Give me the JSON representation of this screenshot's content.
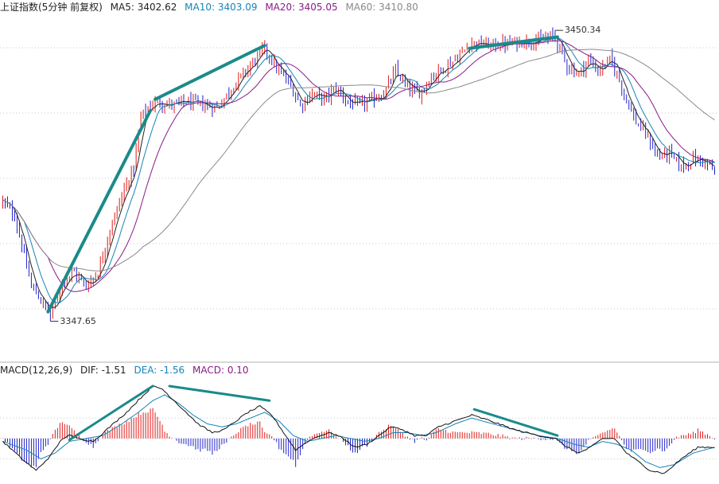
{
  "colors": {
    "background": "#ffffff",
    "grid": "#c8c8c8",
    "up": "#e01818",
    "down": "#2222cc",
    "ma5": "#222222",
    "ma10": "#1585b8",
    "ma20": "#8a1a8a",
    "ma60": "#8a8a8a",
    "trend_line": "#1a8a8a",
    "label_text": "#333333"
  },
  "price_header": {
    "title": "上证指数(5分钟 前复权)",
    "ma5": "MA5: 3402.62",
    "ma10": "MA10: 3403.09",
    "ma20": "MA20: 3405.05",
    "ma60": "MA60: 3410.80"
  },
  "macd_header": {
    "name": "MACD(12,26,9)",
    "dif": "DIF: -1.51",
    "dea": "DEA: -1.56",
    "macd": "MACD: 0.10"
  },
  "annotations": {
    "high": "3450.34",
    "low": "3347.65"
  },
  "chart_data": [
    {
      "type": "candlestick",
      "x_count": 300,
      "ylim": [
        3336,
        3456
      ],
      "high_marker": {
        "index": 232,
        "value": 3450.34
      },
      "low_marker": {
        "index": 20,
        "value": 3347.65
      },
      "close_anchors": [
        [
          0,
          3390
        ],
        [
          5,
          3385
        ],
        [
          12,
          3360
        ],
        [
          20,
          3350
        ],
        [
          25,
          3362
        ],
        [
          30,
          3365
        ],
        [
          35,
          3360
        ],
        [
          40,
          3365
        ],
        [
          45,
          3380
        ],
        [
          50,
          3392
        ],
        [
          55,
          3402
        ],
        [
          58,
          3420
        ],
        [
          62,
          3424
        ],
        [
          66,
          3425
        ],
        [
          70,
          3424
        ],
        [
          78,
          3425
        ],
        [
          90,
          3423
        ],
        [
          98,
          3432
        ],
        [
          104,
          3438
        ],
        [
          110,
          3444
        ],
        [
          115,
          3437
        ],
        [
          120,
          3432
        ],
        [
          125,
          3424
        ],
        [
          130,
          3428
        ],
        [
          135,
          3426
        ],
        [
          140,
          3430
        ],
        [
          145,
          3425
        ],
        [
          150,
          3424
        ],
        [
          160,
          3428
        ],
        [
          165,
          3436
        ],
        [
          170,
          3430
        ],
        [
          175,
          3428
        ],
        [
          180,
          3434
        ],
        [
          190,
          3440
        ],
        [
          197,
          3446
        ],
        [
          205,
          3445
        ],
        [
          215,
          3446
        ],
        [
          225,
          3447
        ],
        [
          232,
          3448
        ],
        [
          237,
          3438
        ],
        [
          242,
          3435
        ],
        [
          246,
          3440
        ],
        [
          250,
          3436
        ],
        [
          255,
          3440
        ],
        [
          258,
          3435
        ],
        [
          262,
          3426
        ],
        [
          266,
          3418
        ],
        [
          270,
          3414
        ],
        [
          275,
          3406
        ],
        [
          280,
          3407
        ],
        [
          285,
          3402
        ],
        [
          290,
          3405
        ],
        [
          295,
          3404
        ],
        [
          299,
          3400
        ]
      ],
      "ma_periods": [
        5,
        10,
        20,
        60
      ],
      "trend_lines": [
        {
          "from": [
            19,
            3351
          ],
          "to": [
            62,
            3422
          ]
        },
        {
          "from": [
            64,
            3426
          ],
          "to": [
            110,
            3445
          ]
        },
        {
          "from": [
            196,
            3444
          ],
          "to": [
            233,
            3448
          ]
        }
      ]
    },
    {
      "type": "macd",
      "fast": 12,
      "slow": 26,
      "signal": 9,
      "dif_anchors": [
        [
          0,
          -1
        ],
        [
          8,
          -7
        ],
        [
          14,
          -11
        ],
        [
          20,
          -6
        ],
        [
          25,
          0
        ],
        [
          28,
          1
        ],
        [
          32,
          0
        ],
        [
          38,
          -1
        ],
        [
          45,
          4
        ],
        [
          52,
          9
        ],
        [
          58,
          14
        ],
        [
          63,
          18
        ],
        [
          67,
          17
        ],
        [
          72,
          13
        ],
        [
          77,
          9
        ],
        [
          82,
          5
        ],
        [
          88,
          2
        ],
        [
          93,
          3
        ],
        [
          98,
          6
        ],
        [
          103,
          9
        ],
        [
          108,
          11
        ],
        [
          113,
          8
        ],
        [
          118,
          2
        ],
        [
          123,
          -4
        ],
        [
          128,
          -1
        ],
        [
          133,
          1
        ],
        [
          138,
          2
        ],
        [
          143,
          0
        ],
        [
          148,
          -3
        ],
        [
          153,
          -2
        ],
        [
          158,
          1
        ],
        [
          163,
          4
        ],
        [
          168,
          3
        ],
        [
          173,
          1
        ],
        [
          178,
          1
        ],
        [
          183,
          4
        ],
        [
          190,
          6
        ],
        [
          197,
          8
        ],
        [
          205,
          6
        ],
        [
          215,
          3
        ],
        [
          225,
          1
        ],
        [
          232,
          0
        ],
        [
          237,
          -3
        ],
        [
          242,
          -5
        ],
        [
          247,
          -3
        ],
        [
          252,
          0
        ],
        [
          257,
          0
        ],
        [
          262,
          -5
        ],
        [
          267,
          -8
        ],
        [
          272,
          -11
        ],
        [
          278,
          -12
        ],
        [
          285,
          -7
        ],
        [
          292,
          -3
        ],
        [
          299,
          -3
        ]
      ],
      "dea_anchors": [
        [
          0,
          -1
        ],
        [
          10,
          -4
        ],
        [
          16,
          -7
        ],
        [
          22,
          -5
        ],
        [
          28,
          -1
        ],
        [
          35,
          0
        ],
        [
          42,
          1
        ],
        [
          50,
          5
        ],
        [
          57,
          9
        ],
        [
          63,
          13
        ],
        [
          68,
          15
        ],
        [
          74,
          12
        ],
        [
          80,
          8
        ],
        [
          86,
          5
        ],
        [
          92,
          4
        ],
        [
          98,
          5
        ],
        [
          104,
          7
        ],
        [
          110,
          9
        ],
        [
          116,
          6
        ],
        [
          122,
          1
        ],
        [
          128,
          -1
        ],
        [
          134,
          0
        ],
        [
          140,
          1
        ],
        [
          146,
          0
        ],
        [
          152,
          -1
        ],
        [
          158,
          0
        ],
        [
          164,
          2
        ],
        [
          170,
          2
        ],
        [
          176,
          1
        ],
        [
          182,
          2
        ],
        [
          190,
          5
        ],
        [
          197,
          7
        ],
        [
          206,
          5
        ],
        [
          215,
          3
        ],
        [
          225,
          1
        ],
        [
          233,
          0
        ],
        [
          240,
          -2
        ],
        [
          246,
          -3
        ],
        [
          252,
          -1
        ],
        [
          258,
          -2
        ],
        [
          264,
          -4
        ],
        [
          270,
          -8
        ],
        [
          276,
          -10
        ],
        [
          282,
          -9
        ],
        [
          290,
          -5
        ],
        [
          299,
          -3
        ]
      ],
      "ylim": [
        -14,
        21
      ],
      "trend_lines": [
        {
          "from": [
            28,
            -0.5
          ],
          "to": [
            63,
            18
          ]
        },
        {
          "from": [
            70,
            18
          ],
          "to": [
            112,
            13
          ]
        },
        {
          "from": [
            198,
            10
          ],
          "to": [
            233,
            1
          ]
        }
      ]
    }
  ]
}
